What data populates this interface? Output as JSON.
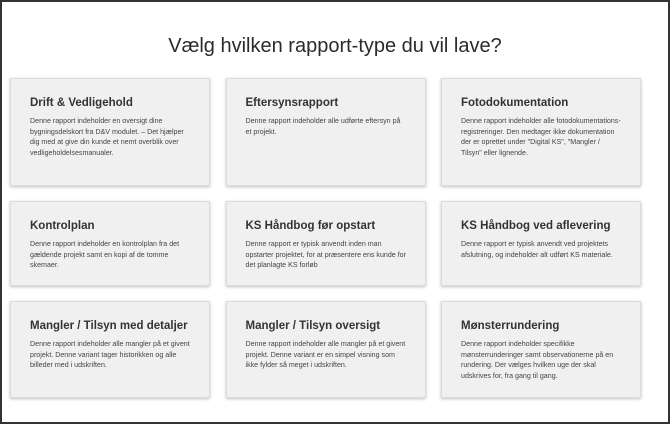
{
  "heading": "Vælg hvilken rapport-type du vil lave?",
  "cards": [
    {
      "title": "Drift & Vedligehold",
      "description": "Denne rapport indeholder en oversigt dine bygningsdelskort fra D&V modulet. – Det hjælper dig med at give din kunde et nemt overblik over vedligeholdelsesmanualer."
    },
    {
      "title": "Eftersynsrapport",
      "description": "Denne rapport indeholder alle udførte eftersyn på et projekt."
    },
    {
      "title": "Fotodokumentation",
      "description": "Denne rapport indeholder alle fotodokumentations-registreringer. Den medtager ikke dokumentation der er oprettet under \"Digital KS\", \"Mangler / Tilsyn\" eller lignende."
    },
    {
      "title": "Kontrolplan",
      "description": "Denne rapport indeholder en kontrolplan fra det gældende projekt samt en kopi af de tomme skemaer."
    },
    {
      "title": "KS Håndbog før opstart",
      "description": "Denne rapport er typisk anvendt inden man opstarter projektet, for at præsentere ens kunde for det planlagte KS forløb"
    },
    {
      "title": "KS Håndbog ved aflevering",
      "description": "Denne rapport er typisk anvendt ved projektets afslutning, og indeholder alt udført KS materiale."
    },
    {
      "title": "Mangler / Tilsyn med detaljer",
      "description": "Denne rapport indeholder alle mangler på et givent projekt. Denne variant tager historikken og alle billeder med i udskriften."
    },
    {
      "title": "Mangler / Tilsyn oversigt",
      "description": "Denne rapport indeholder alle mangler på et givent projekt. Denne variant er en simpel visning som ikke fylder så meget i udskriften."
    },
    {
      "title": "Mønsterrundering",
      "description": "Denne rapport indeholder specifikke mønsterrunderinger samt observationerne på en rundering. Der vælges hvilken uge der skal udskrives for, fra gang til gang."
    }
  ]
}
